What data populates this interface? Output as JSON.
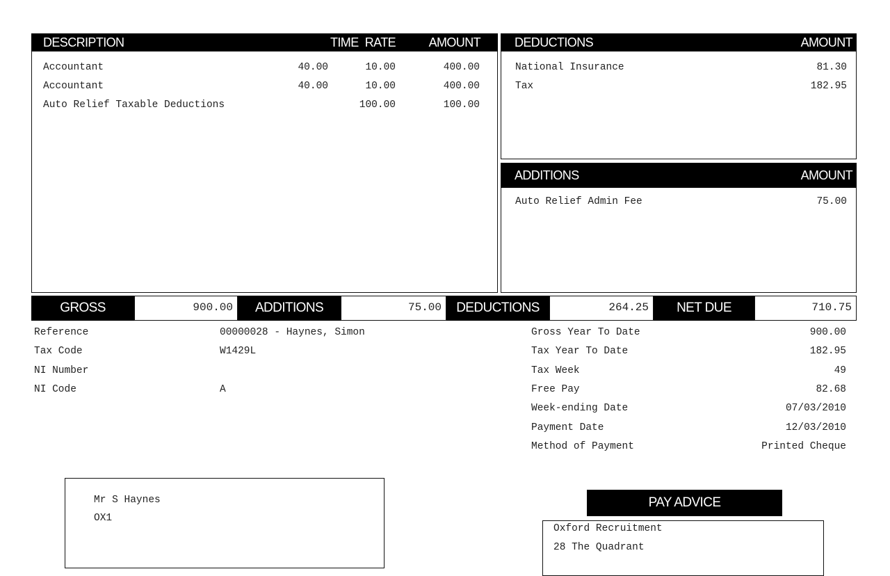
{
  "earnings": {
    "headers": {
      "description": "DESCRIPTION",
      "time": "TIME",
      "rate": "RATE",
      "amount": "AMOUNT"
    },
    "rows": [
      {
        "description": "Accountant",
        "time": "40.00",
        "rate": "10.00",
        "amount": "400.00"
      },
      {
        "description": "Accountant",
        "time": "40.00",
        "rate": "10.00",
        "amount": "400.00"
      },
      {
        "description": "Auto Relief Taxable Deductions",
        "time": "",
        "rate": "100.00",
        "amount": "100.00"
      }
    ]
  },
  "deductions": {
    "headers": {
      "label": "DEDUCTIONS",
      "amount": "AMOUNT"
    },
    "rows": [
      {
        "label": "National Insurance",
        "amount": "81.30"
      },
      {
        "label": "Tax",
        "amount": "182.95"
      }
    ]
  },
  "additions": {
    "headers": {
      "label": "ADDITIONS",
      "amount": "AMOUNT"
    },
    "rows": [
      {
        "label": "Auto Relief Admin Fee",
        "amount": "75.00"
      }
    ]
  },
  "summary": {
    "gross_label": "GROSS",
    "gross": "900.00",
    "additions_label": "ADDITIONS",
    "additions": "75.00",
    "deductions_label": "DEDUCTIONS",
    "deductions": "264.25",
    "net_label": "NET DUE",
    "net": "710.75"
  },
  "employee": [
    {
      "label": "Reference",
      "value": "00000028 - Haynes, Simon"
    },
    {
      "label": "Tax Code",
      "value": "W1429L"
    },
    {
      "label": "NI Number",
      "value": ""
    },
    {
      "label": "NI Code",
      "value": "A"
    }
  ],
  "ytd": [
    {
      "label": "Gross Year To Date",
      "value": "900.00"
    },
    {
      "label": "Tax Year To Date",
      "value": "182.95"
    },
    {
      "label": "Tax Week",
      "value": "49"
    },
    {
      "label": "Free Pay",
      "value": "82.68"
    },
    {
      "label": "Week-ending Date",
      "value": "07/03/2010"
    },
    {
      "label": "Payment Date",
      "value": "12/03/2010"
    },
    {
      "label": "Method of Payment",
      "value": "Printed Cheque"
    }
  ],
  "address": {
    "line1": "Mr S Haynes",
    "line2": "OX1"
  },
  "pay_advice": {
    "title": "PAY ADVICE",
    "line1": "Oxford Recruitment",
    "line2": "28 The Quadrant"
  }
}
